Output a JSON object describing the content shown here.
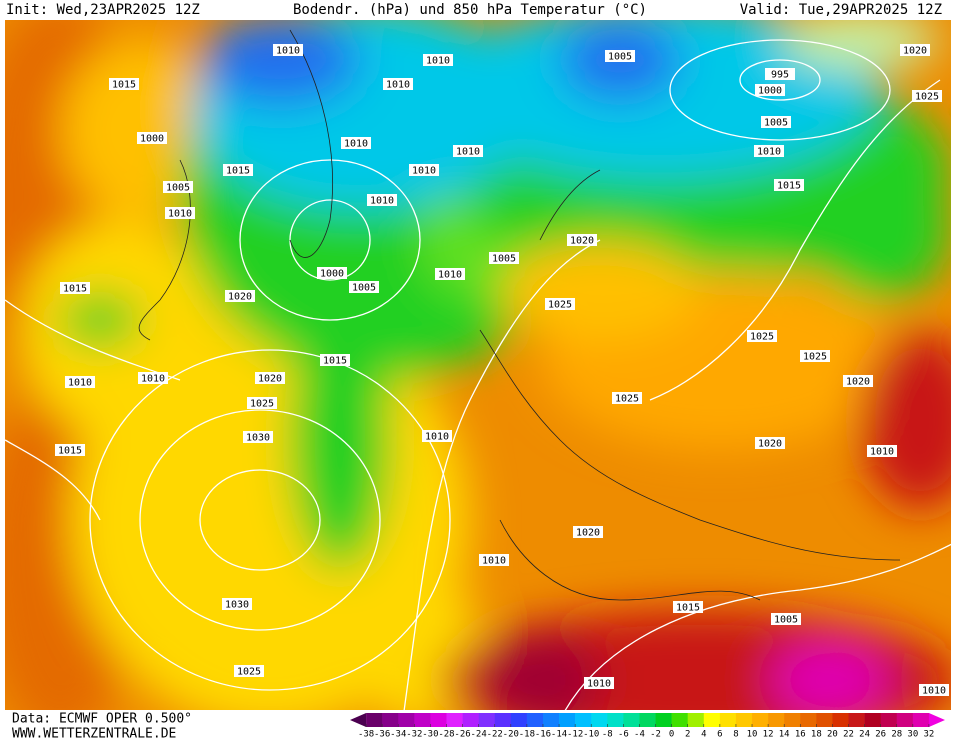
{
  "header": {
    "init": "Init: Wed,23APR2025 12Z",
    "title": "Bodendr. (hPa) und 850 hPa Temperatur (°C)",
    "valid": "Valid: Tue,29APR2025 12Z"
  },
  "map": {
    "pressure_labels": [
      "1010",
      "1010",
      "1005",
      "995",
      "1000",
      "1020",
      "1025",
      "1015",
      "1010",
      "1005",
      "1000",
      "1010",
      "1010",
      "1010",
      "1015",
      "1010",
      "1005",
      "1015",
      "1010",
      "1010",
      "1020",
      "1000",
      "1005",
      "1010",
      "1005",
      "1020",
      "1015",
      "1025",
      "1025",
      "1015",
      "1025",
      "1010",
      "1010",
      "1020",
      "1020",
      "1025",
      "1025",
      "1030",
      "1010",
      "1020",
      "1010",
      "1015",
      "1020",
      "1010",
      "1030",
      "1015",
      "1005",
      "1025",
      "1010",
      "1010"
    ]
  },
  "footer": {
    "source": "Data: ECMWF OPER 0.500°",
    "site": "WWW.WETTERZENTRALE.DE"
  },
  "colorbar": {
    "ticks": [
      -38,
      -36,
      -34,
      -32,
      -30,
      -28,
      -26,
      -24,
      -22,
      -20,
      -18,
      -16,
      -14,
      -12,
      -10,
      -8,
      -6,
      -4,
      -2,
      0,
      2,
      4,
      6,
      8,
      10,
      12,
      14,
      16,
      18,
      20,
      22,
      24,
      26,
      28,
      30,
      32
    ],
    "colors": [
      "#4b0050",
      "#6a006a",
      "#86008a",
      "#a000a8",
      "#c000c8",
      "#dc00e0",
      "#e020ff",
      "#b020ff",
      "#8030ff",
      "#5a30ff",
      "#3040ff",
      "#2060ff",
      "#1080ff",
      "#00a0ff",
      "#00c0ff",
      "#00d8f0",
      "#00e0c8",
      "#00e098",
      "#00d860",
      "#00d020",
      "#40e000",
      "#a0f000",
      "#ffff00",
      "#ffe000",
      "#ffc800",
      "#ffb000",
      "#f89800",
      "#f08000",
      "#e86800",
      "#e05000",
      "#d83000",
      "#c81818",
      "#b00020",
      "#c00050",
      "#d00080",
      "#e000b0",
      "#f000e0"
    ]
  }
}
